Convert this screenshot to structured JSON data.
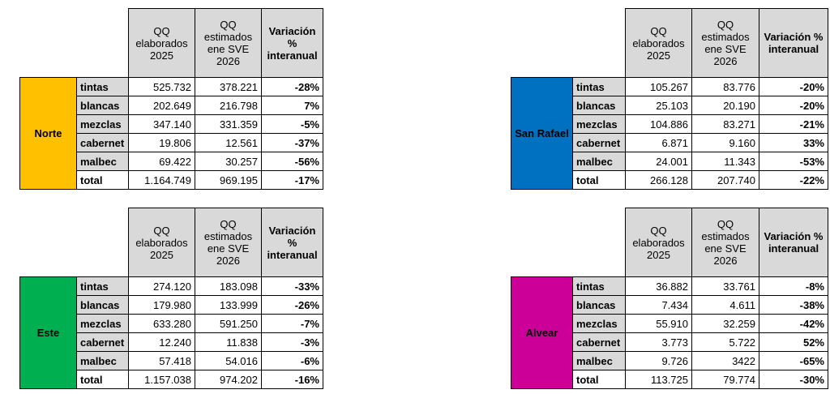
{
  "headers": {
    "qq_elaborados": "QQ elaborados 2025",
    "qq_estimados": "QQ estimados ene SVE 2026",
    "variacion_norte": "Variación % interanual",
    "variacion_sanrafael": "Variación % interanual",
    "variacion_este": "Variación % interanual",
    "variacion_alvear": "Variación % interanual"
  },
  "colors": {
    "norte": "#ffc000",
    "san_rafael": "#0070c0",
    "este": "#00b050",
    "alvear": "#cc0099",
    "header_gray": "#d9d9d9"
  },
  "tables": {
    "norte": {
      "region": "Norte",
      "rows": [
        {
          "cat": "tintas",
          "elab": "525.732",
          "est": "378.221",
          "var": "-28%"
        },
        {
          "cat": "blancas",
          "elab": "202.649",
          "est": "216.798",
          "var": "7%"
        },
        {
          "cat": "mezclas",
          "elab": "347.140",
          "est": "331.359",
          "var": "-5%"
        },
        {
          "cat": "cabernet",
          "elab": "19.806",
          "est": "12.561",
          "var": "-37%"
        },
        {
          "cat": "malbec",
          "elab": "69.422",
          "est": "30.257",
          "var": "-56%"
        },
        {
          "cat": "total",
          "elab": "1.164.749",
          "est": "969.195",
          "var": "-17%"
        }
      ]
    },
    "san_rafael": {
      "region": "San Rafael",
      "rows": [
        {
          "cat": "tintas",
          "elab": "105.267",
          "est": "83.776",
          "var": "-20%"
        },
        {
          "cat": "blancas",
          "elab": "25.103",
          "est": "20.190",
          "var": "-20%"
        },
        {
          "cat": "mezclas",
          "elab": "104.886",
          "est": "83.271",
          "var": "-21%"
        },
        {
          "cat": "cabernet",
          "elab": "6.871",
          "est": "9.160",
          "var": "33%"
        },
        {
          "cat": "malbec",
          "elab": "24.001",
          "est": "11.343",
          "var": "-53%"
        },
        {
          "cat": "total",
          "elab": "266.128",
          "est": "207.740",
          "var": "-22%"
        }
      ]
    },
    "este": {
      "region": "Este",
      "rows": [
        {
          "cat": "tintas",
          "elab": "274.120",
          "est": "183.098",
          "var": "-33%"
        },
        {
          "cat": "blancas",
          "elab": "179.980",
          "est": "133.999",
          "var": "-26%"
        },
        {
          "cat": "mezclas",
          "elab": "633.280",
          "est": "591.250",
          "var": "-7%"
        },
        {
          "cat": "cabernet",
          "elab": "12.240",
          "est": "11.838",
          "var": "-3%"
        },
        {
          "cat": "malbec",
          "elab": "57.418",
          "est": "54.016",
          "var": "-6%"
        },
        {
          "cat": "total",
          "elab": "1.157.038",
          "est": "974.202",
          "var": "-16%"
        }
      ]
    },
    "alvear": {
      "region": "Alvear",
      "rows": [
        {
          "cat": "tintas",
          "elab": "36.882",
          "est": "33.761",
          "var": "-8%"
        },
        {
          "cat": "blancas",
          "elab": "7.434",
          "est": "4.611",
          "var": "-38%"
        },
        {
          "cat": "mezclas",
          "elab": "55.910",
          "est": "32.259",
          "var": "-42%"
        },
        {
          "cat": "cabernet",
          "elab": "3.773",
          "est": "5.722",
          "var": "52%"
        },
        {
          "cat": "malbec",
          "elab": "9.726",
          "est": "3422",
          "var": "-65%"
        },
        {
          "cat": "total",
          "elab": "113.725",
          "est": "79.774",
          "var": "-30%"
        }
      ]
    }
  }
}
